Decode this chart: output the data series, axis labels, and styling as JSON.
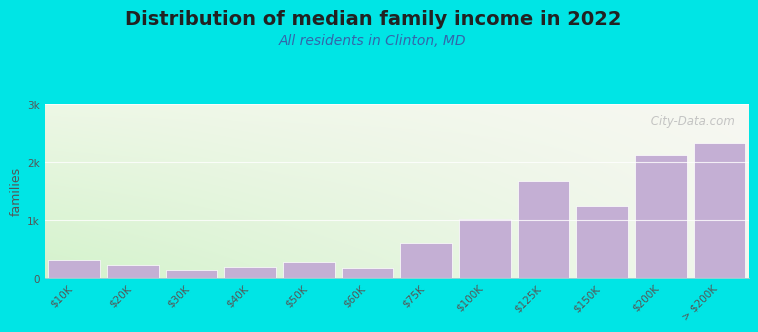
{
  "title": "Distribution of median family income in 2022",
  "subtitle": "All residents in Clinton, MD",
  "ylabel": "families",
  "categories": [
    "$10K",
    "$20K",
    "$30K",
    "$40K",
    "$50K",
    "$60K",
    "$75K",
    "$100K",
    "$125K",
    "$150K",
    "$200K",
    "> $200K"
  ],
  "values": [
    320,
    220,
    150,
    200,
    280,
    185,
    610,
    1020,
    1680,
    1250,
    2120,
    2330
  ],
  "bar_color": "#c4afd4",
  "background_color": "#00e5e5",
  "plot_bg_color_topleft": "#e8f5e0",
  "plot_bg_color_topright": "#f8f8f5",
  "title_fontsize": 14,
  "subtitle_fontsize": 10,
  "ylabel_fontsize": 9,
  "tick_fontsize": 7.5,
  "ylim": [
    0,
    3000
  ],
  "yticks": [
    0,
    1000,
    2000,
    3000
  ],
  "ytick_labels": [
    "0",
    "1k",
    "2k",
    "3k"
  ],
  "watermark_text": " City-Data.com",
  "title_color": "#222222",
  "subtitle_color": "#3366aa",
  "tick_color": "#555555",
  "watermark_color": "#bbbbbb"
}
